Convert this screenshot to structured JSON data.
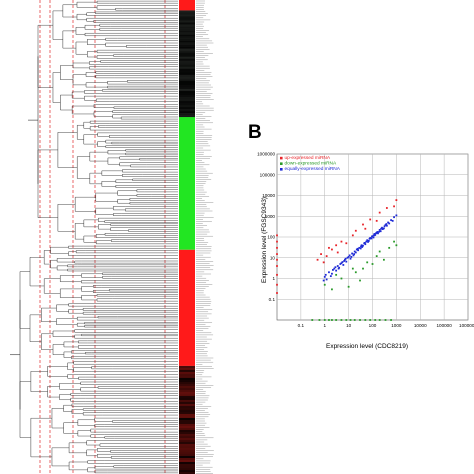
{
  "panel_b": {
    "letter": "B"
  },
  "colors": {
    "up": "#e8242a",
    "down": "#2a9a2a",
    "equal": "#1f2bd6",
    "heat_red": "#ff1a1a",
    "heat_green": "#22e622",
    "heat_black": "#0a0a0a",
    "dendrogram": "#333333",
    "guide_red": "#e0282a"
  },
  "heatmap": {
    "blocks": [
      {
        "color": "red",
        "fraction": 0.022
      },
      {
        "color": "black",
        "fraction": 0.225
      },
      {
        "color": "green",
        "fraction": 0.28
      },
      {
        "color": "red",
        "fraction": 0.245
      },
      {
        "color": "black-red",
        "fraction": 0.228
      }
    ]
  },
  "chart_data": {
    "type": "scatter",
    "title": "",
    "xlabel": "Expression level (CDC8219)",
    "ylabel": "Expression level (FGSC9343)",
    "x_scale": "log",
    "y_scale": "log",
    "xlim": [
      0.01,
      1000000
    ],
    "ylim": [
      0.01,
      1000000
    ],
    "x_ticks": [
      "0.1",
      "1",
      "10",
      "100",
      "1000",
      "10000",
      "100000",
      "1000000"
    ],
    "y_ticks": [
      "0.1",
      "1",
      "10",
      "100",
      "1000",
      "10000",
      "100000",
      "1000000"
    ],
    "grid": true,
    "legend_position": "top-left",
    "series": [
      {
        "name": "up-expressed miRNA",
        "color": "#e8242a",
        "points": [
          [
            0.01,
            0.2
          ],
          [
            0.01,
            0.5
          ],
          [
            0.01,
            1.5
          ],
          [
            0.01,
            4
          ],
          [
            0.01,
            8
          ],
          [
            0.01,
            15
          ],
          [
            0.01,
            30
          ],
          [
            0.01,
            60
          ],
          [
            0.01,
            120
          ],
          [
            0.5,
            8
          ],
          [
            0.7,
            15
          ],
          [
            0.9,
            6
          ],
          [
            1.2,
            12
          ],
          [
            1.5,
            30
          ],
          [
            2,
            25
          ],
          [
            3,
            40
          ],
          [
            3.5,
            18
          ],
          [
            5,
            60
          ],
          [
            8,
            50
          ],
          [
            15,
            120
          ],
          [
            20,
            200
          ],
          [
            40,
            400
          ],
          [
            50,
            250
          ],
          [
            80,
            700
          ],
          [
            150,
            600
          ],
          [
            200,
            1500
          ],
          [
            400,
            2500
          ],
          [
            800,
            3000
          ],
          [
            1000,
            6000
          ]
        ]
      },
      {
        "name": "down-expressed miRNA",
        "color": "#2a9a2a",
        "points": [
          [
            0.3,
            0.01
          ],
          [
            0.6,
            0.01
          ],
          [
            1,
            0.01
          ],
          [
            1.5,
            0.01
          ],
          [
            2,
            0.01
          ],
          [
            3,
            0.01
          ],
          [
            5,
            0.01
          ],
          [
            8,
            0.01
          ],
          [
            12,
            0.01
          ],
          [
            18,
            0.01
          ],
          [
            30,
            0.01
          ],
          [
            50,
            0.01
          ],
          [
            80,
            0.01
          ],
          [
            130,
            0.01
          ],
          [
            200,
            0.01
          ],
          [
            350,
            0.01
          ],
          [
            600,
            0.01
          ],
          [
            1,
            0.5
          ],
          [
            2,
            0.3
          ],
          [
            5,
            1
          ],
          [
            10,
            0.4
          ],
          [
            20,
            2
          ],
          [
            40,
            3
          ],
          [
            60,
            6
          ],
          [
            100,
            5
          ],
          [
            150,
            12
          ],
          [
            200,
            20
          ],
          [
            300,
            8
          ],
          [
            500,
            30
          ],
          [
            800,
            60
          ],
          [
            1000,
            40
          ],
          [
            3,
            1.5
          ],
          [
            15,
            3
          ],
          [
            30,
            0.8
          ]
        ]
      },
      {
        "name": "equally-expressed miRNA",
        "color": "#1f2bd6",
        "points": [
          [
            1,
            1.2
          ],
          [
            1.2,
            0.9
          ],
          [
            1.5,
            2
          ],
          [
            2,
            1.7
          ],
          [
            2.5,
            3
          ],
          [
            3,
            2.4
          ],
          [
            3.5,
            4
          ],
          [
            4,
            3.3
          ],
          [
            5,
            5.5
          ],
          [
            6,
            4.5
          ],
          [
            7,
            8
          ],
          [
            8,
            6.5
          ],
          [
            9,
            10
          ],
          [
            10,
            11
          ],
          [
            12,
            9
          ],
          [
            14,
            16
          ],
          [
            16,
            13
          ],
          [
            18,
            20
          ],
          [
            20,
            18
          ],
          [
            22,
            25
          ],
          [
            25,
            23
          ],
          [
            28,
            30
          ],
          [
            32,
            28
          ],
          [
            35,
            40
          ],
          [
            40,
            38
          ],
          [
            45,
            50
          ],
          [
            50,
            45
          ],
          [
            55,
            60
          ],
          [
            60,
            70
          ],
          [
            70,
            65
          ],
          [
            80,
            90
          ],
          [
            90,
            85
          ],
          [
            100,
            110
          ],
          [
            110,
            95
          ],
          [
            120,
            140
          ],
          [
            130,
            125
          ],
          [
            150,
            160
          ],
          [
            170,
            150
          ],
          [
            200,
            220
          ],
          [
            220,
            190
          ],
          [
            250,
            280
          ],
          [
            300,
            260
          ],
          [
            350,
            380
          ],
          [
            400,
            350
          ],
          [
            450,
            500
          ],
          [
            500,
            450
          ],
          [
            600,
            650
          ],
          [
            700,
            600
          ],
          [
            800,
            900
          ],
          [
            1000,
            1100
          ],
          [
            1.8,
            1.3
          ],
          [
            2.2,
            2.6
          ],
          [
            4.5,
            5
          ],
          [
            6.5,
            7
          ],
          [
            11,
            13
          ],
          [
            13,
            11
          ],
          [
            17,
            15
          ],
          [
            24,
            27
          ],
          [
            33,
            35
          ],
          [
            37,
            33
          ],
          [
            48,
            52
          ],
          [
            65,
            58
          ],
          [
            75,
            82
          ],
          [
            95,
            105
          ],
          [
            115,
            120
          ],
          [
            140,
            150
          ],
          [
            160,
            175
          ],
          [
            190,
            180
          ],
          [
            230,
            250
          ],
          [
            270,
            240
          ],
          [
            320,
            330
          ],
          [
            380,
            420
          ],
          [
            0.9,
            0.8
          ],
          [
            1.1,
            1.5
          ],
          [
            3.8,
            3
          ],
          [
            7.5,
            9
          ],
          [
            2.8,
            3.5
          ],
          [
            5.5,
            6.2
          ]
        ]
      }
    ]
  }
}
